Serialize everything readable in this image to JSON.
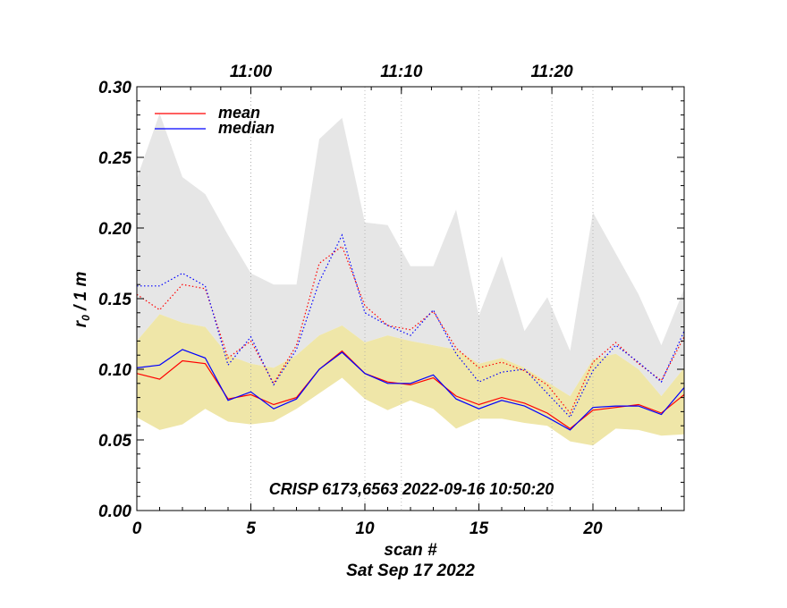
{
  "chart_data": {
    "type": "line",
    "xlabel": "scan #",
    "ylabel": "r₀ / 1 m",
    "ylabel_main": "r",
    "ylabel_sub": "0",
    "ylabel_rest": " / 1 m",
    "date_label": "Sat Sep 17 2022",
    "annotation": "CRISP 6173,6563 2022-09-16 10:50:20",
    "xlim": [
      0,
      24
    ],
    "ylim": [
      0.0,
      0.3
    ],
    "x_ticks": [
      0,
      5,
      10,
      15,
      20
    ],
    "x_tick_labels": [
      "0",
      "5",
      "10",
      "15",
      "20"
    ],
    "y_ticks": [
      0.0,
      0.05,
      0.1,
      0.15,
      0.2,
      0.25,
      0.3
    ],
    "y_tick_labels": [
      "0.00",
      "0.05",
      "0.10",
      "0.15",
      "0.20",
      "0.25",
      "0.30"
    ],
    "top_axis_ticks": [
      {
        "scan": 5,
        "label": "11:00"
      },
      {
        "scan": 11.6,
        "label": "11:10"
      },
      {
        "scan": 18.2,
        "label": "11:20"
      }
    ],
    "vertical_grid_scans": [
      5,
      10,
      15,
      20
    ],
    "vertical_grid_time_scans": [
      5,
      11.6,
      18.2
    ],
    "legend": {
      "position": "top-left",
      "entries": [
        {
          "name": "mean",
          "color": "#ff0000"
        },
        {
          "name": "median",
          "color": "#0000ff"
        }
      ]
    },
    "colors": {
      "mean": "#ff0000",
      "median": "#0000ff",
      "max_band": "#e6e6e6",
      "min_band": "#efe6a8"
    },
    "x": [
      0,
      1,
      2,
      3,
      4,
      5,
      6,
      7,
      8,
      9,
      10,
      11,
      12,
      13,
      14,
      15,
      16,
      17,
      18,
      19,
      20,
      21,
      22,
      23,
      24
    ],
    "bands": {
      "upper_top": [
        0.235,
        0.281,
        0.236,
        0.224,
        0.195,
        0.168,
        0.16,
        0.16,
        0.263,
        0.278,
        0.204,
        0.202,
        0.173,
        0.173,
        0.213,
        0.138,
        0.18,
        0.127,
        0.151,
        0.113,
        0.211,
        0.182,
        0.153,
        0.117,
        0.157
      ],
      "upper_bottom": [
        0.12,
        0.139,
        0.133,
        0.13,
        0.11,
        0.104,
        0.101,
        0.11,
        0.124,
        0.131,
        0.119,
        0.124,
        0.12,
        0.117,
        0.114,
        0.104,
        0.108,
        0.101,
        0.091,
        0.081,
        0.107,
        0.111,
        0.1,
        0.081,
        0.101
      ],
      "lower_top": [
        0.12,
        0.139,
        0.133,
        0.13,
        0.11,
        0.104,
        0.101,
        0.11,
        0.124,
        0.131,
        0.119,
        0.124,
        0.12,
        0.117,
        0.114,
        0.104,
        0.108,
        0.101,
        0.091,
        0.081,
        0.107,
        0.111,
        0.1,
        0.081,
        0.101
      ],
      "lower_bottom": [
        0.066,
        0.057,
        0.061,
        0.072,
        0.063,
        0.061,
        0.063,
        0.072,
        0.083,
        0.094,
        0.079,
        0.071,
        0.078,
        0.072,
        0.058,
        0.065,
        0.065,
        0.062,
        0.06,
        0.049,
        0.046,
        0.058,
        0.057,
        0.053,
        0.054
      ]
    },
    "series": [
      {
        "name": "mean",
        "style": "solid",
        "color": "#ff0000",
        "values": [
          0.097,
          0.093,
          0.106,
          0.104,
          0.079,
          0.082,
          0.075,
          0.08,
          0.1,
          0.113,
          0.097,
          0.091,
          0.089,
          0.094,
          0.081,
          0.075,
          0.08,
          0.076,
          0.069,
          0.058,
          0.071,
          0.073,
          0.075,
          0.069,
          0.082
        ]
      },
      {
        "name": "median",
        "style": "solid",
        "color": "#0000ff",
        "values": [
          0.101,
          0.103,
          0.114,
          0.108,
          0.078,
          0.084,
          0.072,
          0.079,
          0.1,
          0.112,
          0.097,
          0.09,
          0.09,
          0.096,
          0.079,
          0.072,
          0.078,
          0.074,
          0.066,
          0.057,
          0.073,
          0.074,
          0.074,
          0.068,
          0.087
        ]
      },
      {
        "name": "mean-dotted",
        "style": "dotted",
        "color": "#ff0000",
        "values": [
          0.153,
          0.142,
          0.16,
          0.157,
          0.108,
          0.12,
          0.09,
          0.117,
          0.175,
          0.187,
          0.145,
          0.131,
          0.128,
          0.141,
          0.115,
          0.101,
          0.105,
          0.099,
          0.089,
          0.069,
          0.105,
          0.119,
          0.104,
          0.092,
          0.123
        ]
      },
      {
        "name": "median-dotted",
        "style": "dotted",
        "color": "#0000ff",
        "values": [
          0.159,
          0.159,
          0.168,
          0.159,
          0.103,
          0.123,
          0.089,
          0.114,
          0.162,
          0.195,
          0.14,
          0.131,
          0.124,
          0.142,
          0.111,
          0.091,
          0.098,
          0.1,
          0.083,
          0.066,
          0.099,
          0.117,
          0.105,
          0.091,
          0.127
        ]
      }
    ]
  }
}
